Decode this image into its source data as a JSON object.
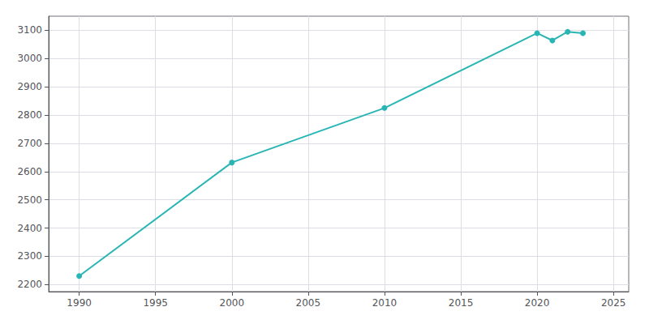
{
  "chart_data": {
    "type": "line",
    "x": [
      1990,
      2000,
      2010,
      2020,
      2021,
      2022,
      2023
    ],
    "values": [
      2230,
      2632,
      2825,
      3090,
      3064,
      3095,
      3090
    ],
    "color": "#2ab5b5",
    "marker": "circle",
    "xlim": [
      1988,
      2026
    ],
    "ylim": [
      2175,
      3150
    ],
    "xticks": [
      1990,
      1995,
      2000,
      2005,
      2010,
      2015,
      2020,
      2025
    ],
    "yticks": [
      2200,
      2300,
      2400,
      2500,
      2600,
      2700,
      2800,
      2900,
      3000,
      3100
    ],
    "grid": true
  }
}
